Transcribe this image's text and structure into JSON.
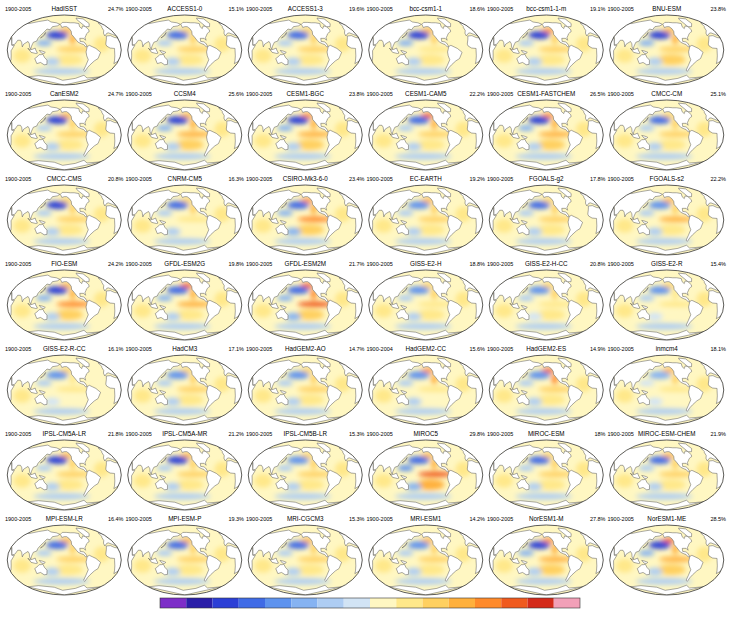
{
  "chart_data": {
    "type": "map",
    "colorbar": {
      "range": [
        -0.8,
        0.8
      ],
      "colors": [
        "#7d2ec8",
        "#2a1ea8",
        "#2c3fd6",
        "#3f6be6",
        "#5e93ee",
        "#86b3f2",
        "#aecdf3",
        "#d2e4f5",
        "#fff7c2",
        "#ffe88a",
        "#ffd060",
        "#ffb03c",
        "#ff8a2a",
        "#f05a1e",
        "#d42a1a",
        "#f2a0b8"
      ]
    },
    "panels": [
      {
        "title": "HadISST",
        "period": "1900-2005",
        "percent": "24.7%",
        "values": [
          -0.6,
          0.4,
          0.35,
          0.3,
          0.1,
          0.1,
          -0.2,
          -0.15,
          0.1,
          -0.1
        ]
      },
      {
        "title": "ACCESS1-0",
        "period": "1900-2005",
        "percent": "15.1%",
        "values": [
          -0.5,
          0.3,
          0.25,
          0.2,
          0.1,
          0.15,
          -0.15,
          -0.1,
          0.1,
          -0.1
        ]
      },
      {
        "title": "ACCESS1-3",
        "period": "1900-2005",
        "percent": "19.6%",
        "values": [
          -0.5,
          0.3,
          0.3,
          0.25,
          0.15,
          0.1,
          -0.1,
          -0.1,
          0.15,
          -0.1
        ]
      },
      {
        "title": "bcc-csm1-1",
        "period": "1900-2005",
        "percent": "18.6%",
        "values": [
          -0.55,
          0.4,
          0.3,
          0.15,
          0.1,
          0.05,
          -0.2,
          -0.1,
          0.05,
          -0.15
        ]
      },
      {
        "title": "bcc-csm1-1-m",
        "period": "1900-2005",
        "percent": "19.1%",
        "values": [
          -0.6,
          0.45,
          0.3,
          0.2,
          0.15,
          0.1,
          -0.15,
          -0.1,
          0.1,
          -0.1
        ]
      },
      {
        "title": "BNU-ESM",
        "period": "1900-2005",
        "percent": "23.8%",
        "values": [
          -0.6,
          0.35,
          0.35,
          0.3,
          0.2,
          0.1,
          -0.2,
          -0.15,
          0.1,
          -0.1
        ]
      },
      {
        "title": "CanESM2",
        "period": "1900-2005",
        "percent": "24.7%",
        "values": [
          -0.6,
          0.35,
          0.3,
          0.3,
          0.15,
          0.15,
          -0.15,
          -0.1,
          0.1,
          -0.1
        ]
      },
      {
        "title": "CCSM4",
        "period": "1900-2005",
        "percent": "25.6%",
        "values": [
          -0.55,
          0.4,
          0.35,
          0.35,
          0.2,
          0.15,
          -0.2,
          -0.1,
          0.1,
          -0.15
        ]
      },
      {
        "title": "CESM1-BGC",
        "period": "1900-2005",
        "percent": "23.8%",
        "values": [
          -0.55,
          0.45,
          0.35,
          0.35,
          0.2,
          0.1,
          -0.2,
          -0.1,
          0.1,
          -0.15
        ]
      },
      {
        "title": "CESM1-CAM5",
        "period": "1900-2005",
        "percent": "22.2%",
        "values": [
          -0.5,
          0.5,
          0.4,
          0.3,
          0.15,
          0.1,
          -0.15,
          -0.1,
          0.1,
          -0.1
        ]
      },
      {
        "title": "CESM1-FASTCHEM",
        "period": "1900-2005",
        "percent": "26.5%",
        "values": [
          -0.55,
          0.45,
          0.4,
          0.35,
          0.2,
          0.15,
          -0.2,
          -0.15,
          0.1,
          -0.1
        ]
      },
      {
        "title": "CMCC-CM",
        "period": "1900-2005",
        "percent": "25.1%",
        "values": [
          -0.5,
          0.3,
          0.25,
          0.3,
          0.15,
          0.15,
          -0.15,
          -0.1,
          0.15,
          -0.1
        ]
      },
      {
        "title": "CMCC-CMS",
        "period": "1900-2005",
        "percent": "20.8%",
        "values": [
          -0.55,
          0.3,
          0.25,
          0.3,
          0.1,
          0.1,
          -0.15,
          -0.1,
          0.1,
          -0.1
        ]
      },
      {
        "title": "CNRM-CM5",
        "period": "1900-2005",
        "percent": "16.3%",
        "values": [
          -0.45,
          0.25,
          0.2,
          0.15,
          0.05,
          0.1,
          -0.1,
          -0.1,
          0.1,
          -0.1
        ]
      },
      {
        "title": "CSIRO-Mk3-6-0",
        "period": "1900-2005",
        "percent": "23.4%",
        "values": [
          -0.5,
          0.45,
          0.35,
          0.45,
          0.25,
          0.1,
          -0.3,
          -0.2,
          0.15,
          -0.15
        ]
      },
      {
        "title": "EC-EARTH",
        "period": "1900-2005",
        "percent": "19.2%",
        "values": [
          -0.4,
          0.35,
          0.3,
          0.2,
          0.1,
          0.1,
          -0.1,
          -0.1,
          0.15,
          -0.1
        ]
      },
      {
        "title": "FGOALS-g2",
        "period": "1900-2005",
        "percent": "17.8%",
        "values": [
          -0.45,
          0.3,
          0.25,
          0.25,
          0.1,
          0.1,
          -0.15,
          -0.1,
          0.05,
          -0.1
        ]
      },
      {
        "title": "FGOALS-s2",
        "period": "1900-2005",
        "percent": "22.2%",
        "values": [
          -0.4,
          0.35,
          0.3,
          0.35,
          0.15,
          0.15,
          -0.15,
          -0.15,
          0.1,
          -0.1
        ]
      },
      {
        "title": "FIO-ESM",
        "period": "1900-2005",
        "percent": "24.2%",
        "values": [
          -0.6,
          0.4,
          0.35,
          0.45,
          0.2,
          0.15,
          -0.25,
          -0.15,
          0.1,
          -0.1
        ]
      },
      {
        "title": "GFDL-ESM2G",
        "period": "1900-2005",
        "percent": "19.8%",
        "values": [
          -0.5,
          0.5,
          0.4,
          0.35,
          0.15,
          0.1,
          -0.2,
          -0.15,
          0.1,
          -0.1
        ]
      },
      {
        "title": "GFDL-ESM2M",
        "period": "1900-2005",
        "percent": "21.7%",
        "values": [
          -0.5,
          0.55,
          0.45,
          0.5,
          0.2,
          0.15,
          -0.25,
          -0.2,
          0.1,
          -0.15
        ]
      },
      {
        "title": "GISS-E2-H",
        "period": "1900-2005",
        "percent": "18.8%",
        "values": [
          -0.35,
          0.2,
          0.2,
          0.15,
          0.1,
          0.1,
          -0.1,
          -0.1,
          0.1,
          -0.1
        ]
      },
      {
        "title": "GISS-E2-H-CC",
        "period": "1900-2005",
        "percent": "20.8%",
        "values": [
          -0.4,
          0.25,
          0.2,
          0.15,
          0.1,
          0.1,
          -0.1,
          -0.05,
          0.1,
          -0.1
        ]
      },
      {
        "title": "GISS-E2-R",
        "period": "1900-2005",
        "percent": "15.4%",
        "values": [
          -0.35,
          0.2,
          0.15,
          0.1,
          0.05,
          0.1,
          -0.1,
          -0.05,
          0.1,
          -0.1
        ]
      },
      {
        "title": "GISS-E2-R-CC",
        "period": "1900-2005",
        "percent": "16.1%",
        "values": [
          -0.35,
          0.2,
          0.15,
          0.1,
          0.05,
          0.1,
          -0.1,
          -0.05,
          0.05,
          -0.1
        ]
      },
      {
        "title": "HadCM3",
        "period": "1900-2005",
        "percent": "17.1%",
        "values": [
          -0.4,
          0.3,
          0.25,
          0.2,
          0.1,
          0.1,
          -0.1,
          -0.1,
          0.1,
          -0.1
        ]
      },
      {
        "title": "HadGEM2-AO",
        "period": "1900-2005",
        "percent": "14.7%",
        "values": [
          -0.4,
          0.3,
          0.25,
          0.2,
          0.1,
          0.15,
          -0.1,
          -0.1,
          0.1,
          -0.1
        ]
      },
      {
        "title": "HadGEM2-CC",
        "period": "1900-2004",
        "percent": "15.6%",
        "values": [
          -0.4,
          0.45,
          0.35,
          0.15,
          0.05,
          0.1,
          -0.1,
          -0.1,
          0.1,
          -0.1
        ]
      },
      {
        "title": "HadGEM2-ES",
        "period": "1900-2005",
        "percent": "14.9%",
        "values": [
          -0.4,
          0.55,
          0.45,
          0.2,
          0.1,
          0.1,
          -0.1,
          -0.1,
          0.1,
          -0.1
        ]
      },
      {
        "title": "inmcm4",
        "period": "1900-2005",
        "percent": "18.1%",
        "values": [
          -0.3,
          0.35,
          0.3,
          0.1,
          0.05,
          0.1,
          -0.05,
          -0.05,
          0.15,
          -0.1
        ]
      },
      {
        "title": "IPSL-CM5A-LR",
        "period": "1900-2005",
        "percent": "21.8%",
        "values": [
          -0.55,
          0.35,
          0.3,
          0.3,
          0.15,
          0.15,
          -0.15,
          -0.1,
          0.1,
          -0.1
        ]
      },
      {
        "title": "IPSL-CM5A-MR",
        "period": "1900-2005",
        "percent": "21.2%",
        "values": [
          -0.55,
          0.35,
          0.3,
          0.3,
          0.15,
          0.15,
          -0.15,
          -0.1,
          0.1,
          -0.1
        ]
      },
      {
        "title": "IPSL-CM5B-LR",
        "period": "1900-2005",
        "percent": "15.3%",
        "values": [
          -0.4,
          0.25,
          0.2,
          0.2,
          0.1,
          0.1,
          -0.1,
          -0.1,
          0.1,
          -0.1
        ]
      },
      {
        "title": "MIROC5",
        "period": "1900-2005",
        "percent": "29.8%",
        "values": [
          -0.45,
          0.4,
          0.4,
          0.6,
          0.35,
          0.1,
          -0.35,
          -0.25,
          0.1,
          -0.15
        ]
      },
      {
        "title": "MIROC-ESM",
        "period": "1900-2005",
        "percent": "18%",
        "values": [
          -0.5,
          0.3,
          0.25,
          0.25,
          0.1,
          0.1,
          -0.15,
          -0.1,
          0.1,
          -0.1
        ]
      },
      {
        "title": "MIROC-ESM-CHEM",
        "period": "1900-2005",
        "percent": "21.9%",
        "values": [
          -0.5,
          0.35,
          0.3,
          0.3,
          0.15,
          0.1,
          -0.15,
          -0.1,
          0.1,
          -0.1
        ]
      },
      {
        "title": "MPI-ESM-LR",
        "period": "1900-2005",
        "percent": "16.4%",
        "values": [
          -0.45,
          0.35,
          0.3,
          0.25,
          0.1,
          0.15,
          -0.1,
          -0.1,
          0.1,
          -0.1
        ]
      },
      {
        "title": "MPI-ESM-P",
        "period": "1900-2005",
        "percent": "19.3%",
        "values": [
          -0.5,
          0.35,
          0.3,
          0.25,
          0.1,
          0.15,
          -0.1,
          -0.1,
          0.1,
          -0.1
        ]
      },
      {
        "title": "MRI-CGCM3",
        "period": "1900-2005",
        "percent": "15.3%",
        "values": [
          -0.45,
          0.35,
          0.3,
          0.25,
          0.1,
          0.1,
          -0.1,
          -0.1,
          0.1,
          -0.1
        ]
      },
      {
        "title": "MRI-ESM1",
        "period": "1900-2005",
        "percent": "14.2%",
        "values": [
          -0.4,
          0.35,
          0.3,
          0.2,
          0.1,
          0.1,
          -0.1,
          -0.1,
          0.1,
          -0.1
        ]
      },
      {
        "title": "NorESM1-M",
        "period": "1900-2005",
        "percent": "27.8%",
        "values": [
          -0.55,
          0.45,
          0.35,
          0.35,
          0.2,
          0.15,
          -0.2,
          -0.1,
          0.1,
          -0.1
        ]
      },
      {
        "title": "NorESM1-ME",
        "period": "1900-2005",
        "percent": "28.5%",
        "values": [
          -0.55,
          0.5,
          0.35,
          0.35,
          0.2,
          0.15,
          -0.2,
          -0.1,
          0.1,
          -0.1
        ]
      }
    ]
  }
}
